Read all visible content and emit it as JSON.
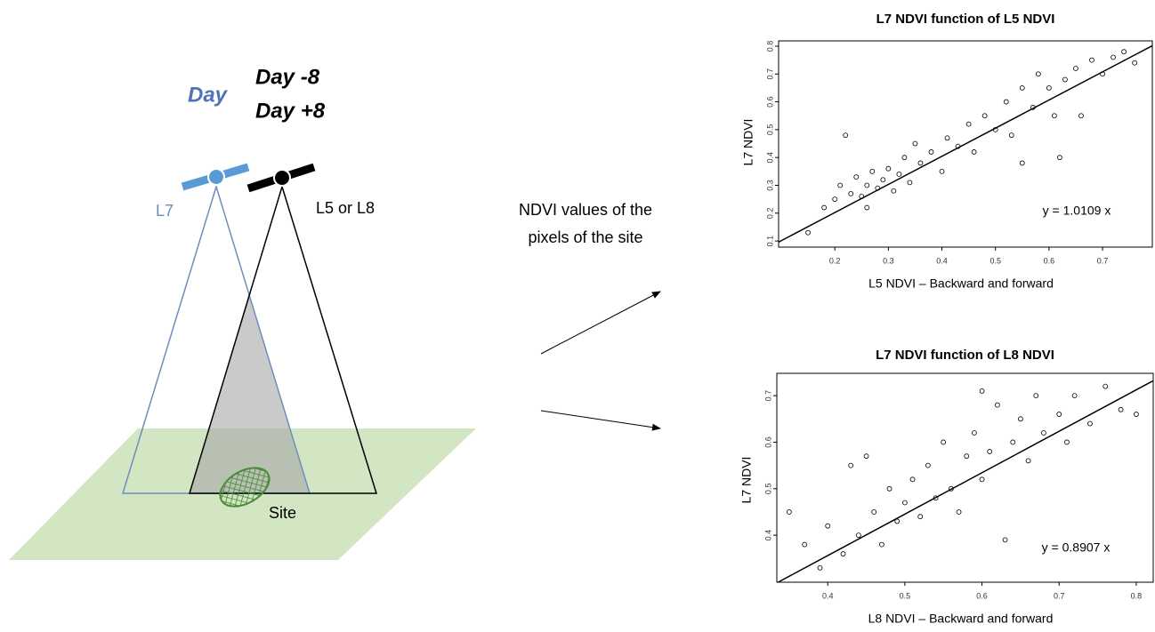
{
  "diagram": {
    "day": "Day",
    "day_minus": "Day -8",
    "day_plus": "Day +8",
    "l7": "L7",
    "l5_l8": "L5 or L8",
    "site": "Site",
    "ndvi_line1": "NDVI values of the",
    "ndvi_line2": "pixels of the site"
  },
  "chart_data": [
    {
      "type": "scatter",
      "title": "L7 NDVI function of L5 NDVI",
      "xlabel": "L5 NDVI – Backward and forward",
      "ylabel": "L7 NDVI",
      "annotation": "y = 1.0109 x",
      "slope": 1.0109,
      "xlim": [
        0.095,
        0.793
      ],
      "ylim": [
        0.078,
        0.819
      ],
      "xticks": [
        0.2,
        0.3,
        0.4,
        0.5,
        0.6,
        0.7
      ],
      "yticks": [
        0.1,
        0.2,
        0.3,
        0.4,
        0.5,
        0.6,
        0.7,
        0.8
      ],
      "x": [
        0.15,
        0.18,
        0.2,
        0.21,
        0.23,
        0.24,
        0.25,
        0.26,
        0.27,
        0.28,
        0.29,
        0.3,
        0.31,
        0.32,
        0.33,
        0.34,
        0.35,
        0.36,
        0.38,
        0.4,
        0.41,
        0.43,
        0.45,
        0.46,
        0.48,
        0.5,
        0.52,
        0.53,
        0.55,
        0.57,
        0.58,
        0.6,
        0.61,
        0.62,
        0.63,
        0.65,
        0.66,
        0.68,
        0.7,
        0.72,
        0.74,
        0.76,
        0.22,
        0.26,
        0.55
      ],
      "y": [
        0.13,
        0.22,
        0.25,
        0.3,
        0.27,
        0.33,
        0.26,
        0.3,
        0.35,
        0.29,
        0.32,
        0.36,
        0.28,
        0.34,
        0.4,
        0.31,
        0.45,
        0.38,
        0.42,
        0.35,
        0.47,
        0.44,
        0.52,
        0.42,
        0.55,
        0.5,
        0.6,
        0.48,
        0.65,
        0.58,
        0.7,
        0.65,
        0.55,
        0.4,
        0.68,
        0.72,
        0.55,
        0.75,
        0.7,
        0.76,
        0.78,
        0.74,
        0.48,
        0.22,
        0.38
      ]
    },
    {
      "type": "scatter",
      "title": "L7 NDVI function of L8 NDVI",
      "xlabel": "L8 NDVI – Backward and forward",
      "ylabel": "L7 NDVI",
      "annotation": "y = 0.8907 x",
      "slope": 0.8907,
      "xlim": [
        0.334,
        0.822
      ],
      "ylim": [
        0.299,
        0.748
      ],
      "xticks": [
        0.4,
        0.5,
        0.6,
        0.7,
        0.8
      ],
      "yticks": [
        0.4,
        0.5,
        0.6,
        0.7
      ],
      "x": [
        0.35,
        0.37,
        0.39,
        0.4,
        0.42,
        0.43,
        0.44,
        0.46,
        0.47,
        0.48,
        0.49,
        0.5,
        0.51,
        0.52,
        0.53,
        0.54,
        0.55,
        0.56,
        0.57,
        0.58,
        0.59,
        0.6,
        0.61,
        0.62,
        0.63,
        0.64,
        0.65,
        0.66,
        0.67,
        0.68,
        0.7,
        0.71,
        0.72,
        0.74,
        0.76,
        0.78,
        0.8,
        0.45,
        0.6
      ],
      "y": [
        0.45,
        0.38,
        0.33,
        0.42,
        0.36,
        0.55,
        0.4,
        0.45,
        0.38,
        0.5,
        0.43,
        0.47,
        0.52,
        0.44,
        0.55,
        0.48,
        0.6,
        0.5,
        0.45,
        0.57,
        0.62,
        0.52,
        0.58,
        0.68,
        0.39,
        0.6,
        0.65,
        0.56,
        0.7,
        0.62,
        0.66,
        0.6,
        0.7,
        0.64,
        0.72,
        0.67,
        0.66,
        0.57,
        0.71
      ]
    }
  ]
}
